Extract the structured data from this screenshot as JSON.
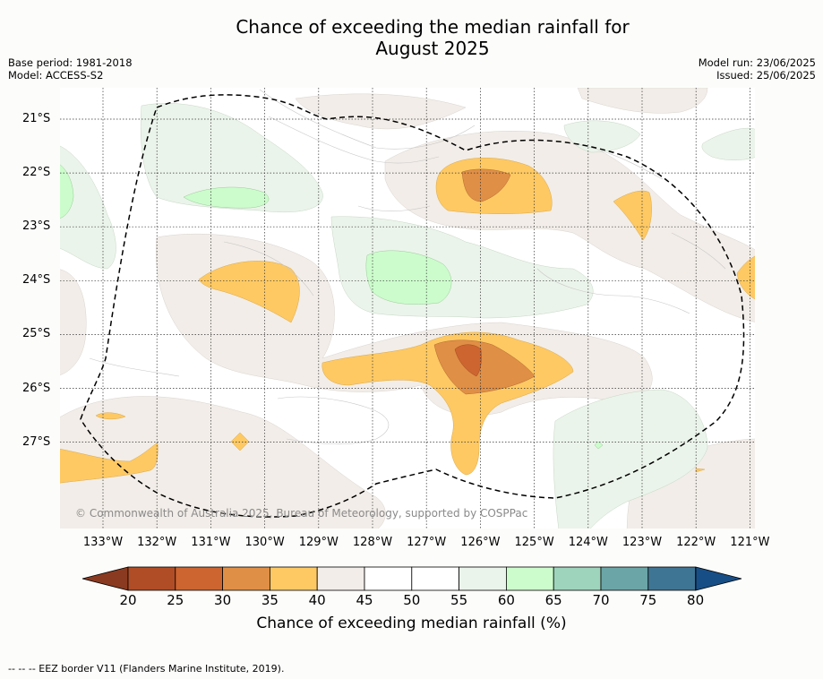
{
  "header": {
    "title_line1": "Chance of exceeding the median rainfall for",
    "title_line2": "August 2025",
    "base_period": "Base period: 1981-2018",
    "model": "Model: ACCESS-S2",
    "model_run": "Model run: 23/06/2025",
    "issued": "Issued: 25/06/2025"
  },
  "map": {
    "longitude_labels": [
      "133°W",
      "132°W",
      "131°W",
      "130°W",
      "129°W",
      "128°W",
      "127°W",
      "126°W",
      "125°W",
      "124°W",
      "123°W",
      "122°W",
      "121°W"
    ],
    "latitude_labels": [
      "21°S",
      "22°S",
      "23°S",
      "24°S",
      "25°S",
      "26°S",
      "27°S"
    ],
    "copyright": "© Commonwealth of Australia 2025, Bureau of Meteorology, supported by COSPPac",
    "colors": {
      "p20_25": "#b14d26",
      "p25_30": "#cd6530",
      "p30_35": "#e08f46",
      "p35_40": "#fec963",
      "p40_45": "#f2ede8",
      "p45_55": "#ffffff",
      "p55_60": "#ebf4ea",
      "p60_65": "#ccfccc",
      "p65_70": "#9ed4bc",
      "p70_75": "#6ba5a8",
      "p75_80": "#3f7594",
      "below20": "#8a3a20",
      "above80": "#174e86"
    }
  },
  "colorbar": {
    "ticks": [
      "20",
      "25",
      "30",
      "35",
      "40",
      "45",
      "50",
      "55",
      "60",
      "65",
      "70",
      "75",
      "80"
    ],
    "label": "Chance of exceeding median rainfall (%)"
  },
  "footer": {
    "legend_text": "--  --  -- EEZ border V11 (Flanders Marine Institute, 2019)."
  }
}
